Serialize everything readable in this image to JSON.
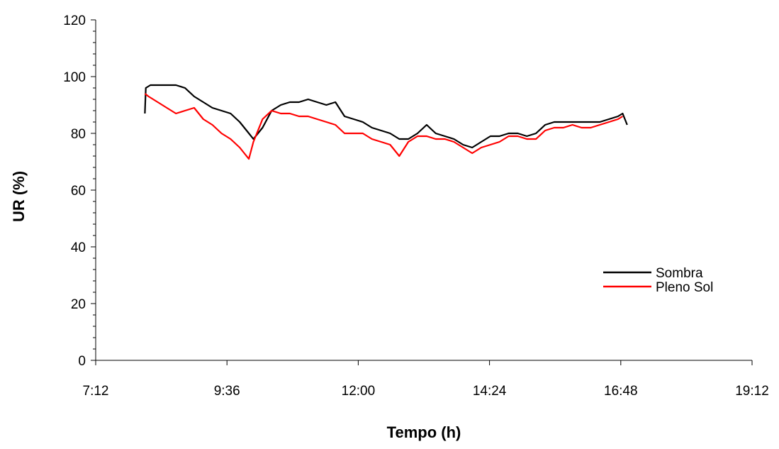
{
  "chart_data": {
    "type": "line",
    "title": "",
    "xlabel": "Tempo (h)",
    "ylabel": "UR (%)",
    "x_unit": "time of day (h:mm)",
    "xlim": [
      "7:12",
      "19:12"
    ],
    "ylim": [
      0,
      120
    ],
    "x_ticks": [
      "7:12",
      "9:36",
      "12:00",
      "14:24",
      "16:48",
      "19:12"
    ],
    "y_ticks": [
      "0",
      "20",
      "40",
      "60",
      "80",
      "100",
      "120"
    ],
    "grid": false,
    "legend_position": "center-right",
    "series": [
      {
        "name": "Sombra",
        "color": "#000000",
        "x": [
          "8:06",
          "8:07",
          "8:12",
          "8:20",
          "8:30",
          "8:40",
          "8:50",
          "9:00",
          "9:10",
          "9:20",
          "9:30",
          "9:40",
          "9:50",
          "10:00",
          "10:05",
          "10:15",
          "10:25",
          "10:35",
          "10:45",
          "10:55",
          "11:05",
          "11:15",
          "11:25",
          "11:35",
          "11:45",
          "11:55",
          "12:05",
          "12:15",
          "12:25",
          "12:35",
          "12:45",
          "12:55",
          "13:05",
          "13:15",
          "13:25",
          "13:35",
          "13:45",
          "13:55",
          "14:05",
          "14:15",
          "14:25",
          "14:35",
          "14:45",
          "14:55",
          "15:05",
          "15:15",
          "15:25",
          "15:35",
          "15:45",
          "15:55",
          "16:05",
          "16:15",
          "16:25",
          "16:35",
          "16:45",
          "16:50",
          "16:55"
        ],
        "y": [
          87,
          96,
          97,
          97,
          97,
          97,
          96,
          93,
          91,
          89,
          88,
          87,
          84,
          80,
          78,
          82,
          88,
          90,
          91,
          91,
          92,
          91,
          90,
          91,
          86,
          85,
          84,
          82,
          81,
          80,
          78,
          78,
          80,
          83,
          80,
          79,
          78,
          76,
          75,
          77,
          79,
          79,
          80,
          80,
          79,
          80,
          83,
          84,
          84,
          84,
          84,
          84,
          84,
          85,
          86,
          87,
          83
        ]
      },
      {
        "name": "Pleno Sol",
        "color": "#ff0000",
        "x": [
          "8:06",
          "8:10",
          "8:20",
          "8:30",
          "8:40",
          "8:50",
          "9:00",
          "9:10",
          "9:20",
          "9:30",
          "9:40",
          "9:50",
          "9:55",
          "10:00",
          "10:05",
          "10:15",
          "10:25",
          "10:35",
          "10:45",
          "10:55",
          "11:05",
          "11:15",
          "11:25",
          "11:35",
          "11:45",
          "11:55",
          "12:05",
          "12:15",
          "12:25",
          "12:35",
          "12:45",
          "12:55",
          "13:05",
          "13:15",
          "13:25",
          "13:35",
          "13:45",
          "13:55",
          "14:05",
          "14:15",
          "14:25",
          "14:35",
          "14:45",
          "14:55",
          "15:05",
          "15:15",
          "15:25",
          "15:35",
          "15:45",
          "15:55",
          "16:05",
          "16:15",
          "16:25",
          "16:35",
          "16:45",
          "16:50"
        ],
        "y": [
          94,
          93,
          91,
          89,
          87,
          88,
          89,
          85,
          83,
          80,
          78,
          75,
          73,
          71,
          77,
          85,
          88,
          87,
          87,
          86,
          86,
          85,
          84,
          83,
          80,
          80,
          80,
          78,
          77,
          76,
          72,
          77,
          79,
          79,
          78,
          78,
          77,
          75,
          73,
          75,
          76,
          77,
          79,
          79,
          78,
          78,
          81,
          82,
          82,
          83,
          82,
          82,
          83,
          84,
          85,
          86
        ]
      }
    ]
  }
}
